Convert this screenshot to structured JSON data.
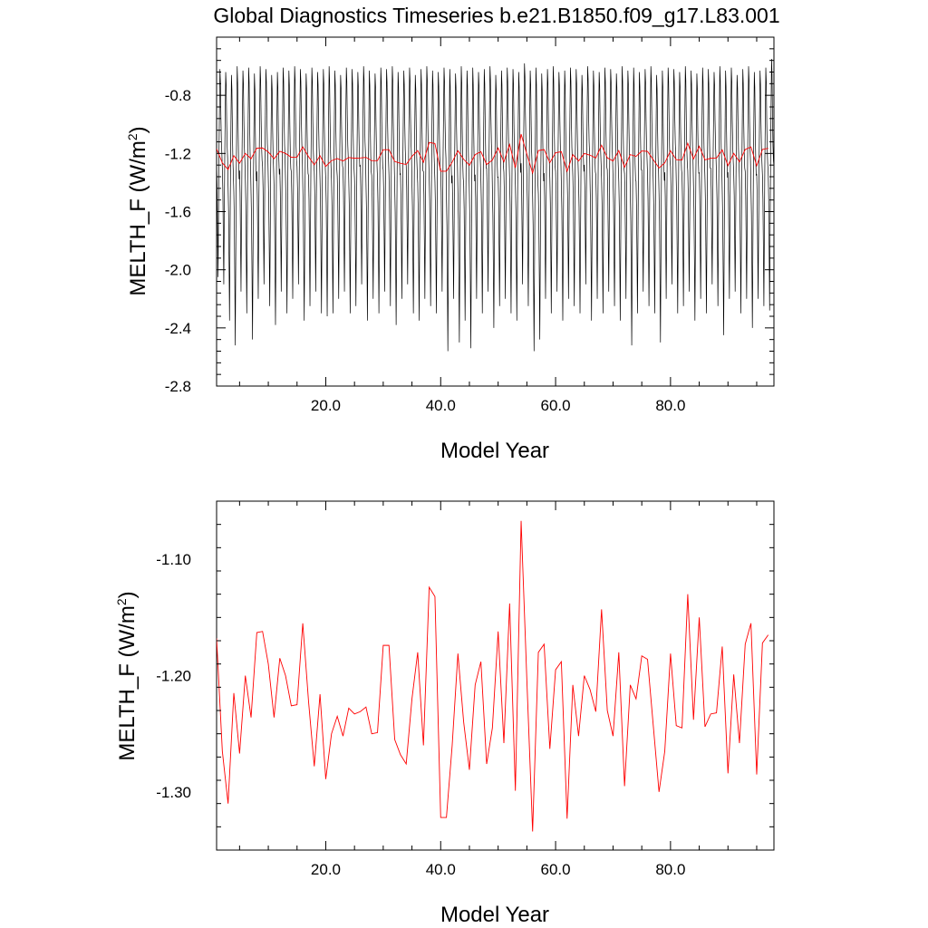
{
  "title": "Global Diagnostics Timeseries b.e21.B1850.f09_g17.L83.001",
  "colors": {
    "monthly": "#000000",
    "annual": "#ff0000",
    "axis": "#000000",
    "background": "#ffffff"
  },
  "chart_data": [
    {
      "type": "line",
      "title": "Global Diagnostics Timeseries b.e21.B1850.f09_g17.L83.001",
      "xlabel": "Model Year",
      "ylabel": "MELTH_F (W/m",
      "ylabel_sup": "2",
      "ylabel_close": ")",
      "xlim": [
        1.0,
        98.0
      ],
      "ylim": [
        -2.8,
        -0.4
      ],
      "x_ticks": [
        20,
        40,
        60,
        80
      ],
      "x_tick_labels": [
        "20.0",
        "40.0",
        "60.0",
        "80.0"
      ],
      "y_ticks": [
        -2.8,
        -2.4,
        -2.0,
        -1.6,
        -1.2,
        -0.8
      ],
      "y_tick_labels": [
        "-2.8",
        "-2.4",
        "-2.0",
        "-1.6",
        "-1.2",
        "-0.8"
      ],
      "grid": false,
      "legend": "none",
      "series": [
        {
          "kind": "monthly",
          "color": "#000000",
          "x_start": 1.0,
          "x_step": 0.0833333,
          "seasonal_cycle": [
            -1.38,
            -1.55,
            -1.9,
            -2.3,
            -1.8,
            -1.3,
            -0.95,
            -0.62,
            -0.72,
            -1.0,
            -1.2,
            -1.3
          ],
          "max_by_year": [
            -0.62,
            -0.64,
            -0.66,
            -0.6,
            -0.63,
            -0.61,
            -0.65,
            -0.6,
            -0.62,
            -0.66,
            -0.64,
            -0.61,
            -0.63,
            -0.6,
            -0.62,
            -0.65,
            -0.61,
            -0.64,
            -0.62,
            -0.6,
            -0.63,
            -0.66,
            -0.61,
            -0.62,
            -0.64,
            -0.6,
            -0.63,
            -0.65,
            -0.61,
            -0.62,
            -0.6,
            -0.64,
            -0.63,
            -0.61,
            -0.66,
            -0.62,
            -0.6,
            -0.63,
            -0.64,
            -0.61,
            -0.62,
            -0.65,
            -0.6,
            -0.63,
            -0.61,
            -0.64,
            -0.62,
            -0.6,
            -0.66,
            -0.63,
            -0.61,
            -0.62,
            -0.64,
            -0.58,
            -0.63,
            -0.61,
            -0.65,
            -0.62,
            -0.6,
            -0.64,
            -0.63,
            -0.61,
            -0.62,
            -0.66,
            -0.6,
            -0.63,
            -0.64,
            -0.61,
            -0.62,
            -0.65,
            -0.6,
            -0.63,
            -0.61,
            -0.64,
            -0.62,
            -0.6,
            -0.66,
            -0.63,
            -0.61,
            -0.62,
            -0.64,
            -0.6,
            -0.63,
            -0.65,
            -0.61,
            -0.62,
            -0.64,
            -0.6,
            -0.63,
            -0.61,
            -0.66,
            -0.62,
            -0.6,
            -0.64,
            -0.63,
            -0.61,
            -0.55,
            -0.62
          ],
          "min_by_year": [
            -2.05,
            -2.1,
            -2.35,
            -2.52,
            -2.15,
            -2.3,
            -2.48,
            -2.2,
            -2.1,
            -2.25,
            -2.38,
            -2.15,
            -2.3,
            -2.2,
            -2.1,
            -2.35,
            -2.25,
            -2.15,
            -2.3,
            -2.32,
            -2.3,
            -2.2,
            -2.15,
            -2.3,
            -2.25,
            -2.1,
            -2.35,
            -2.2,
            -2.3,
            -2.15,
            -2.25,
            -2.38,
            -2.2,
            -2.1,
            -2.3,
            -2.35,
            -2.2,
            -2.25,
            -2.3,
            -2.15,
            -2.56,
            -2.2,
            -2.5,
            -2.35,
            -2.54,
            -2.2,
            -2.3,
            -2.15,
            -2.4,
            -2.25,
            -2.2,
            -2.3,
            -2.35,
            -2.1,
            -2.25,
            -2.56,
            -2.48,
            -2.2,
            -2.3,
            -2.15,
            -2.35,
            -2.2,
            -2.25,
            -2.3,
            -2.1,
            -2.35,
            -2.2,
            -2.3,
            -2.15,
            -2.25,
            -2.35,
            -2.2,
            -2.52,
            -2.3,
            -2.15,
            -2.25,
            -2.3,
            -2.5,
            -2.2,
            -2.1,
            -2.3,
            -2.25,
            -2.15,
            -2.35,
            -2.2,
            -2.3,
            -2.1,
            -2.25,
            -2.45,
            -2.2,
            -2.15,
            -2.3,
            -2.2,
            -2.4,
            -2.2,
            -2.25,
            -2.28,
            -2.1
          ]
        },
        {
          "kind": "annual",
          "color": "#ff0000",
          "x_start": 1.0,
          "x_step": 1.0,
          "values": [
            -1.168,
            -1.265,
            -1.31,
            -1.215,
            -1.267,
            -1.2,
            -1.236,
            -1.163,
            -1.162,
            -1.19,
            -1.236,
            -1.185,
            -1.2,
            -1.226,
            -1.225,
            -1.155,
            -1.222,
            -1.278,
            -1.216,
            -1.289,
            -1.25,
            -1.235,
            -1.252,
            -1.228,
            -1.233,
            -1.231,
            -1.227,
            -1.25,
            -1.249,
            -1.174,
            -1.174,
            -1.255,
            -1.268,
            -1.276,
            -1.22,
            -1.18,
            -1.26,
            -1.124,
            -1.132,
            -1.322,
            -1.322,
            -1.26,
            -1.181,
            -1.24,
            -1.281,
            -1.208,
            -1.188,
            -1.276,
            -1.245,
            -1.162,
            -1.258,
            -1.138,
            -1.299,
            -1.067,
            -1.204,
            -1.334,
            -1.18,
            -1.173,
            -1.263,
            -1.195,
            -1.188,
            -1.323,
            -1.208,
            -1.252,
            -1.2,
            -1.212,
            -1.231,
            -1.143,
            -1.23,
            -1.252,
            -1.18,
            -1.295,
            -1.208,
            -1.22,
            -1.183,
            -1.186,
            -1.243,
            -1.3,
            -1.265,
            -1.181,
            -1.243,
            -1.245,
            -1.13,
            -1.238,
            -1.15,
            -1.244,
            -1.233,
            -1.232,
            -1.175,
            -1.284,
            -1.199,
            -1.258,
            -1.173,
            -1.155,
            -1.285,
            -1.172,
            -1.165
          ]
        }
      ]
    },
    {
      "type": "line",
      "title": "",
      "xlabel": "Model Year",
      "ylabel": "MELTH_F (W/m",
      "ylabel_sup": "2",
      "ylabel_close": ")",
      "xlim": [
        1.0,
        98.0
      ],
      "ylim": [
        -1.35,
        -1.05
      ],
      "x_ticks": [
        20,
        40,
        60,
        80
      ],
      "x_tick_labels": [
        "20.0",
        "40.0",
        "60.0",
        "80.0"
      ],
      "y_ticks": [
        -1.3,
        -1.2,
        -1.1
      ],
      "y_tick_labels": [
        "-1.30",
        "-1.20",
        "-1.10"
      ],
      "grid": false,
      "legend": "none",
      "series": [
        {
          "kind": "annual",
          "color": "#ff0000",
          "x_start": 1.0,
          "x_step": 1.0,
          "values": [
            -1.168,
            -1.265,
            -1.31,
            -1.215,
            -1.267,
            -1.2,
            -1.236,
            -1.163,
            -1.162,
            -1.19,
            -1.236,
            -1.185,
            -1.2,
            -1.226,
            -1.225,
            -1.155,
            -1.222,
            -1.278,
            -1.216,
            -1.289,
            -1.25,
            -1.235,
            -1.252,
            -1.228,
            -1.233,
            -1.231,
            -1.227,
            -1.25,
            -1.249,
            -1.174,
            -1.174,
            -1.255,
            -1.268,
            -1.276,
            -1.22,
            -1.18,
            -1.26,
            -1.124,
            -1.132,
            -1.322,
            -1.322,
            -1.26,
            -1.181,
            -1.24,
            -1.281,
            -1.208,
            -1.188,
            -1.276,
            -1.245,
            -1.162,
            -1.258,
            -1.138,
            -1.299,
            -1.067,
            -1.204,
            -1.334,
            -1.18,
            -1.173,
            -1.263,
            -1.195,
            -1.188,
            -1.323,
            -1.208,
            -1.252,
            -1.2,
            -1.212,
            -1.231,
            -1.143,
            -1.23,
            -1.252,
            -1.18,
            -1.295,
            -1.208,
            -1.22,
            -1.183,
            -1.186,
            -1.243,
            -1.3,
            -1.265,
            -1.181,
            -1.243,
            -1.245,
            -1.13,
            -1.238,
            -1.15,
            -1.244,
            -1.233,
            -1.232,
            -1.175,
            -1.284,
            -1.199,
            -1.258,
            -1.173,
            -1.155,
            -1.285,
            -1.172,
            -1.165
          ]
        }
      ]
    }
  ]
}
